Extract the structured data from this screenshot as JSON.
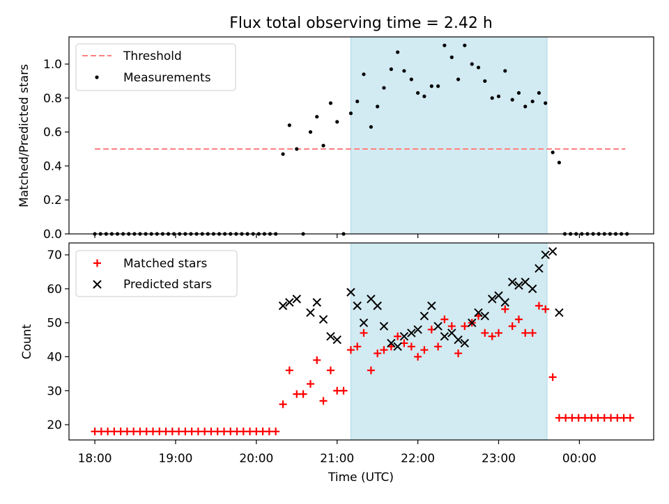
{
  "chart_data": {
    "type": "scatter",
    "title": "Flux total observing time = 2.42 h",
    "xlabel": "Time (UTC)",
    "x_tick_labels": [
      "18:00",
      "19:00",
      "20:00",
      "21:00",
      "22:00",
      "23:00",
      "00:00"
    ],
    "x_tick_hours": [
      18,
      19,
      20,
      21,
      22,
      23,
      24
    ],
    "xlim": [
      17.68,
      24.92
    ],
    "shaded_region_hours": [
      21.17,
      23.6
    ],
    "shaded_color": "#add8e6",
    "panels": [
      {
        "id": "ratio",
        "ylabel": "Matched/Predicted stars",
        "ylim": [
          0,
          1.16
        ],
        "y_ticks": [
          0.0,
          0.2,
          0.4,
          0.6,
          0.8,
          1.0
        ],
        "y_tick_labels": [
          "0.0",
          "0.2",
          "0.4",
          "0.6",
          "0.8",
          "1.0"
        ],
        "legend": {
          "position": "top-left",
          "entries": [
            "Threshold",
            "Measurements"
          ]
        },
        "threshold": {
          "name": "Threshold",
          "value": 0.5,
          "x_range_hours": [
            18.0,
            24.57
          ],
          "color": "#ff7f7f"
        },
        "series": [
          {
            "name": "Measurements",
            "marker": "dot",
            "color": "#000000",
            "points": [
              [
                18.0,
                0
              ],
              [
                18.07,
                0
              ],
              [
                18.14,
                0
              ],
              [
                18.21,
                0
              ],
              [
                18.28,
                0
              ],
              [
                18.35,
                0
              ],
              [
                18.42,
                0
              ],
              [
                18.49,
                0
              ],
              [
                18.56,
                0
              ],
              [
                18.63,
                0
              ],
              [
                18.7,
                0
              ],
              [
                18.77,
                0
              ],
              [
                18.84,
                0
              ],
              [
                18.91,
                0
              ],
              [
                18.98,
                0
              ],
              [
                19.05,
                0
              ],
              [
                19.12,
                0
              ],
              [
                19.19,
                0
              ],
              [
                19.26,
                0
              ],
              [
                19.33,
                0
              ],
              [
                19.4,
                0
              ],
              [
                19.47,
                0
              ],
              [
                19.54,
                0
              ],
              [
                19.61,
                0
              ],
              [
                19.68,
                0
              ],
              [
                19.75,
                0
              ],
              [
                19.82,
                0
              ],
              [
                19.89,
                0
              ],
              [
                19.96,
                0
              ],
              [
                20.03,
                0
              ],
              [
                20.1,
                0
              ],
              [
                20.17,
                0
              ],
              [
                20.24,
                0
              ],
              [
                20.33,
                0.47
              ],
              [
                20.41,
                0.64
              ],
              [
                20.5,
                0.5
              ],
              [
                20.58,
                0.0
              ],
              [
                20.67,
                0.6
              ],
              [
                20.75,
                0.69
              ],
              [
                20.83,
                0.52
              ],
              [
                20.92,
                0.77
              ],
              [
                21.0,
                0.66
              ],
              [
                21.08,
                0.0
              ],
              [
                21.17,
                0.71
              ],
              [
                21.25,
                0.78
              ],
              [
                21.33,
                0.94
              ],
              [
                21.42,
                0.63
              ],
              [
                21.5,
                0.75
              ],
              [
                21.58,
                0.86
              ],
              [
                21.67,
                0.97
              ],
              [
                21.75,
                1.07
              ],
              [
                21.83,
                0.96
              ],
              [
                21.92,
                0.91
              ],
              [
                22.0,
                0.83
              ],
              [
                22.08,
                0.81
              ],
              [
                22.17,
                0.87
              ],
              [
                22.25,
                0.87
              ],
              [
                22.33,
                1.11
              ],
              [
                22.42,
                1.04
              ],
              [
                22.5,
                0.91
              ],
              [
                22.58,
                1.11
              ],
              [
                22.67,
                1.0
              ],
              [
                22.75,
                0.98
              ],
              [
                22.83,
                0.9
              ],
              [
                22.92,
                0.8
              ],
              [
                23.0,
                0.81
              ],
              [
                23.08,
                0.96
              ],
              [
                23.17,
                0.79
              ],
              [
                23.25,
                0.83
              ],
              [
                23.33,
                0.75
              ],
              [
                23.42,
                0.78
              ],
              [
                23.5,
                0.83
              ],
              [
                23.58,
                0.77
              ],
              [
                23.67,
                0.48
              ],
              [
                23.75,
                0.42
              ],
              [
                23.82,
                0
              ],
              [
                23.89,
                0
              ],
              [
                23.96,
                0
              ],
              [
                24.03,
                0
              ],
              [
                24.1,
                0
              ],
              [
                24.17,
                0
              ],
              [
                24.24,
                0
              ],
              [
                24.31,
                0
              ],
              [
                24.38,
                0
              ],
              [
                24.45,
                0
              ],
              [
                24.52,
                0
              ],
              [
                24.59,
                0
              ]
            ]
          }
        ]
      },
      {
        "id": "counts",
        "ylabel": "Count",
        "ylim": [
          15.5,
          73.5
        ],
        "y_ticks": [
          20,
          30,
          40,
          50,
          60,
          70
        ],
        "y_tick_labels": [
          "20",
          "30",
          "40",
          "50",
          "60",
          "70"
        ],
        "legend": {
          "position": "top-left",
          "entries": [
            "Matched stars",
            "Predicted stars"
          ]
        },
        "series": [
          {
            "name": "Matched stars",
            "marker": "plus",
            "color": "#ff0000",
            "points": [
              [
                18.0,
                18
              ],
              [
                18.08,
                18
              ],
              [
                18.16,
                18
              ],
              [
                18.24,
                18
              ],
              [
                18.32,
                18
              ],
              [
                18.4,
                18
              ],
              [
                18.48,
                18
              ],
              [
                18.56,
                18
              ],
              [
                18.64,
                18
              ],
              [
                18.72,
                18
              ],
              [
                18.8,
                18
              ],
              [
                18.88,
                18
              ],
              [
                18.96,
                18
              ],
              [
                19.04,
                18
              ],
              [
                19.12,
                18
              ],
              [
                19.2,
                18
              ],
              [
                19.28,
                18
              ],
              [
                19.36,
                18
              ],
              [
                19.44,
                18
              ],
              [
                19.52,
                18
              ],
              [
                19.6,
                18
              ],
              [
                19.68,
                18
              ],
              [
                19.76,
                18
              ],
              [
                19.84,
                18
              ],
              [
                19.92,
                18
              ],
              [
                20.0,
                18
              ],
              [
                20.08,
                18
              ],
              [
                20.16,
                18
              ],
              [
                20.24,
                18
              ],
              [
                20.33,
                26
              ],
              [
                20.41,
                36
              ],
              [
                20.5,
                29
              ],
              [
                20.58,
                29
              ],
              [
                20.67,
                32
              ],
              [
                20.75,
                39
              ],
              [
                20.83,
                27
              ],
              [
                20.92,
                36
              ],
              [
                21.0,
                30
              ],
              [
                21.08,
                30
              ],
              [
                21.17,
                42
              ],
              [
                21.25,
                43
              ],
              [
                21.33,
                47
              ],
              [
                21.42,
                36
              ],
              [
                21.5,
                41
              ],
              [
                21.58,
                42
              ],
              [
                21.67,
                43
              ],
              [
                21.75,
                46
              ],
              [
                21.83,
                44
              ],
              [
                21.92,
                43
              ],
              [
                22.0,
                40
              ],
              [
                22.08,
                42
              ],
              [
                22.17,
                48
              ],
              [
                22.25,
                43
              ],
              [
                22.33,
                51
              ],
              [
                22.42,
                49
              ],
              [
                22.5,
                41
              ],
              [
                22.58,
                49
              ],
              [
                22.67,
                50
              ],
              [
                22.75,
                52
              ],
              [
                22.83,
                47
              ],
              [
                22.92,
                46
              ],
              [
                23.0,
                47
              ],
              [
                23.08,
                54
              ],
              [
                23.17,
                49
              ],
              [
                23.25,
                51
              ],
              [
                23.33,
                47
              ],
              [
                23.42,
                47
              ],
              [
                23.5,
                55
              ],
              [
                23.58,
                54
              ],
              [
                23.67,
                34
              ],
              [
                23.75,
                22
              ],
              [
                23.83,
                22
              ],
              [
                23.91,
                22
              ],
              [
                23.99,
                22
              ],
              [
                24.07,
                22
              ],
              [
                24.15,
                22
              ],
              [
                24.23,
                22
              ],
              [
                24.31,
                22
              ],
              [
                24.39,
                22
              ],
              [
                24.47,
                22
              ],
              [
                24.55,
                22
              ],
              [
                24.63,
                22
              ]
            ]
          },
          {
            "name": "Predicted stars",
            "marker": "x",
            "color": "#000000",
            "points": [
              [
                20.33,
                55
              ],
              [
                20.41,
                56
              ],
              [
                20.5,
                57
              ],
              [
                20.67,
                53
              ],
              [
                20.75,
                56
              ],
              [
                20.83,
                51
              ],
              [
                20.92,
                46
              ],
              [
                21.0,
                45
              ],
              [
                21.17,
                59
              ],
              [
                21.25,
                55
              ],
              [
                21.33,
                50
              ],
              [
                21.42,
                57
              ],
              [
                21.5,
                55
              ],
              [
                21.58,
                49
              ],
              [
                21.67,
                44
              ],
              [
                21.75,
                43
              ],
              [
                21.83,
                46
              ],
              [
                21.92,
                47
              ],
              [
                22.0,
                48
              ],
              [
                22.08,
                52
              ],
              [
                22.17,
                55
              ],
              [
                22.25,
                49
              ],
              [
                22.33,
                46
              ],
              [
                22.42,
                47
              ],
              [
                22.5,
                45
              ],
              [
                22.58,
                44
              ],
              [
                22.67,
                50
              ],
              [
                22.75,
                53
              ],
              [
                22.83,
                52
              ],
              [
                22.92,
                57
              ],
              [
                23.0,
                58
              ],
              [
                23.08,
                56
              ],
              [
                23.17,
                62
              ],
              [
                23.25,
                61
              ],
              [
                23.33,
                62
              ],
              [
                23.42,
                60
              ],
              [
                23.5,
                66
              ],
              [
                23.58,
                70
              ],
              [
                23.67,
                71
              ],
              [
                23.75,
                53
              ]
            ]
          }
        ]
      }
    ]
  }
}
